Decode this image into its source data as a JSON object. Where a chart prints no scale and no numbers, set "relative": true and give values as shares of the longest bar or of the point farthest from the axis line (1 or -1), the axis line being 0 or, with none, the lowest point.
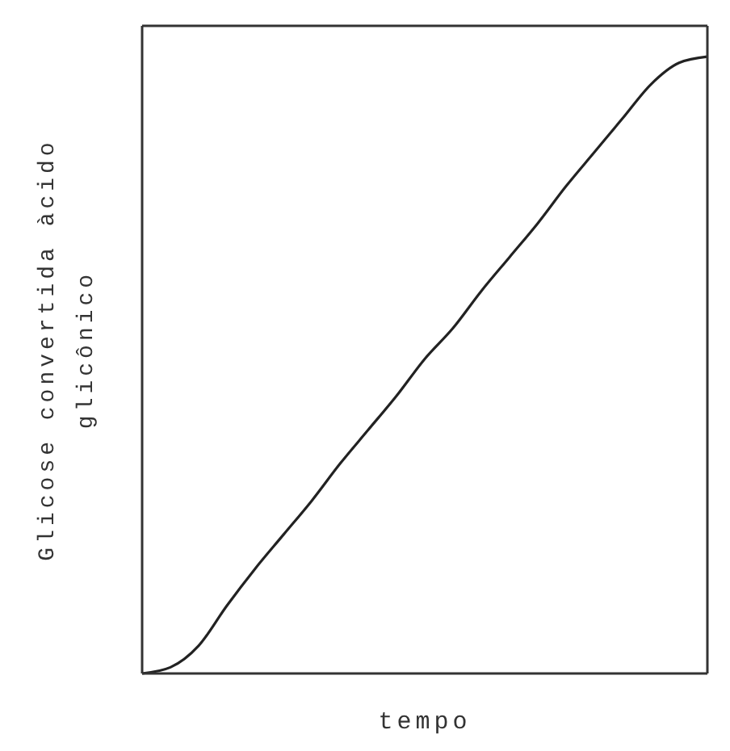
{
  "chart_data": {
    "type": "line",
    "relative": true,
    "xlabel": "tempo",
    "ylabel": "Glicose convertida àcido glicônico",
    "categories": [
      null,
      null,
      null,
      null,
      null,
      null,
      null,
      null,
      null,
      null,
      null,
      null,
      null,
      null,
      null,
      null,
      null,
      null,
      null,
      null,
      null
    ],
    "series": [
      {
        "color": "#222222",
        "values": [
          0,
          0.01,
          0.045,
          0.11,
          0.17,
          0.225,
          0.28,
          0.34,
          0.395,
          0.45,
          0.51,
          0.56,
          0.62,
          0.675,
          0.73,
          0.79,
          0.845,
          0.9,
          0.955,
          0.99,
          1
        ]
      }
    ],
    "grid": false,
    "legend": false,
    "marker": "none",
    "line_style": "solid"
  }
}
